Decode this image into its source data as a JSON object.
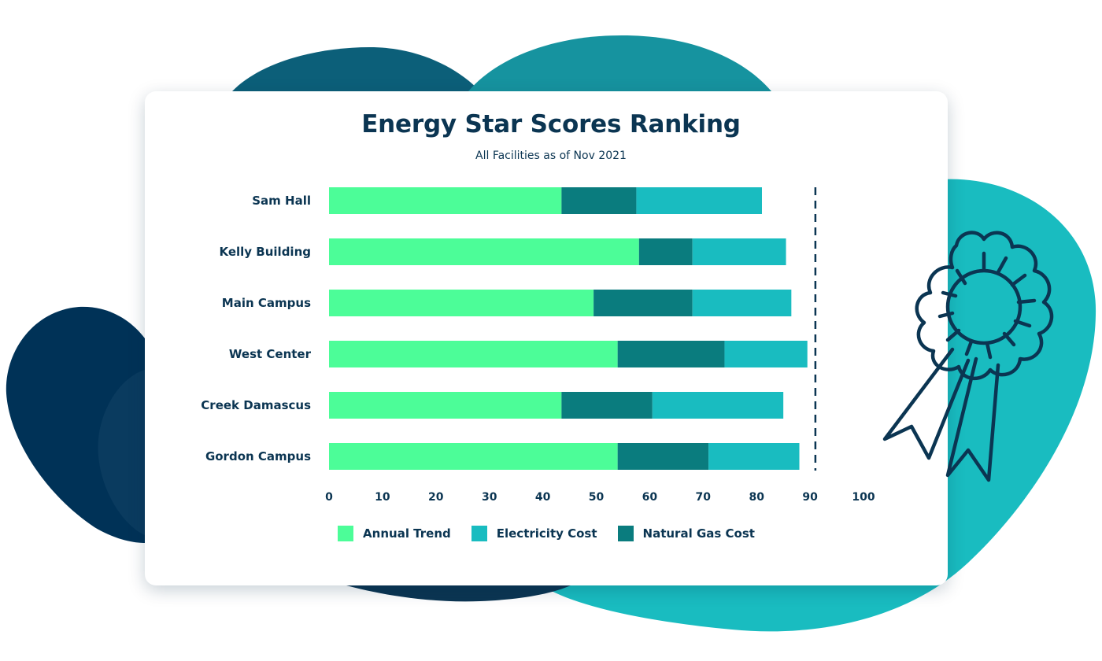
{
  "colors": {
    "navy": "#003257",
    "deep_teal": "#0c5f79",
    "teal": "#16939f",
    "aqua": "#19bcc0",
    "text": "#0b3552"
  },
  "chart_data": {
    "type": "bar",
    "orientation": "horizontal",
    "stacked": true,
    "title": "Energy Star Scores Ranking",
    "subtitle": "All Facilities as of Nov 2021",
    "categories": [
      "Sam Hall",
      "Kelly Building",
      "Main Campus",
      "West Center",
      "Creek Damascus",
      "Gordon Campus"
    ],
    "series": [
      {
        "name": "Annual Trend",
        "color": "#4cfd98",
        "values": [
          43.5,
          58,
          49.5,
          54,
          43.5,
          54
        ]
      },
      {
        "name": "Natural Gas Cost",
        "color": "#0a7c7e",
        "values": [
          14,
          10,
          18.5,
          20,
          17,
          17
        ]
      },
      {
        "name": "Electricity Cost",
        "color": "#19bcc0",
        "values": [
          23.5,
          17.5,
          18.5,
          15.5,
          24.5,
          17
        ]
      }
    ],
    "legend_order": [
      "Annual Trend",
      "Electricity Cost",
      "Natural Gas Cost"
    ],
    "xlim": [
      0,
      100
    ],
    "xticks": [
      0,
      10,
      20,
      30,
      40,
      50,
      60,
      70,
      80,
      90,
      100
    ],
    "reference_line": 91,
    "grid": false,
    "legend_position": "bottom"
  }
}
